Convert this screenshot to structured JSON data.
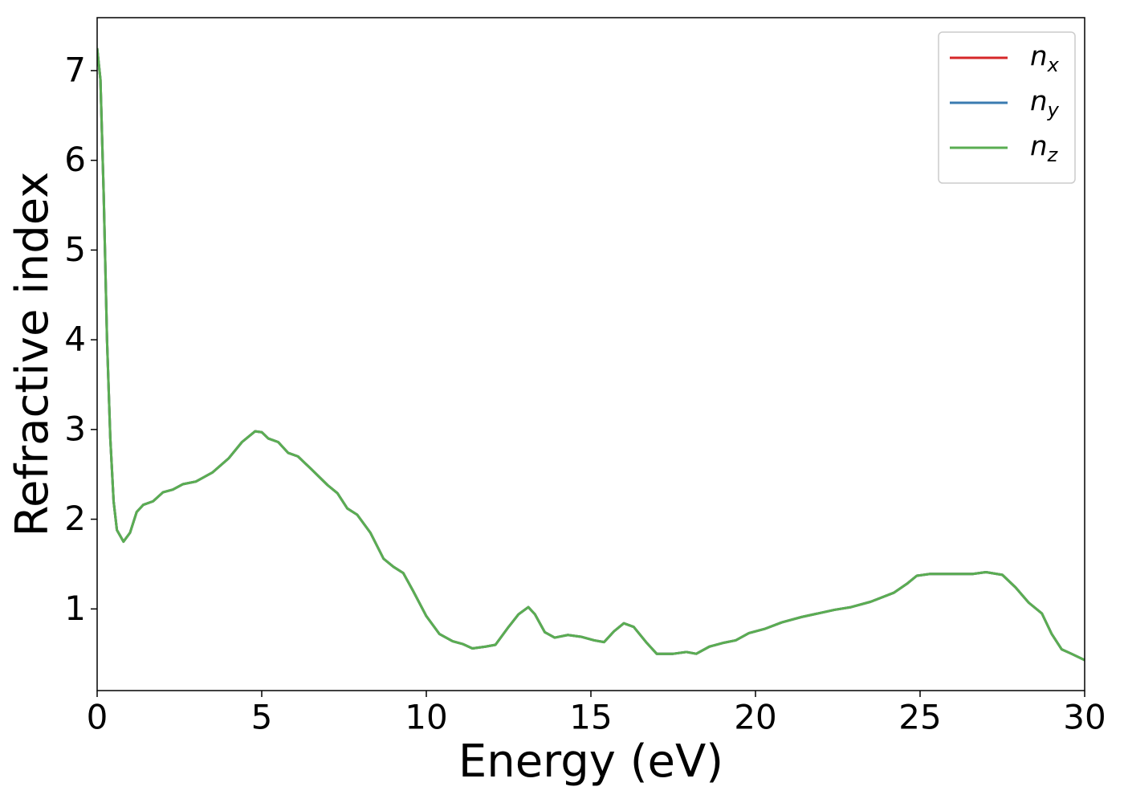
{
  "chart_data": {
    "type": "line",
    "xlabel": "Energy (eV)",
    "ylabel": "Refractive index",
    "x": [
      0,
      0.1,
      0.2,
      0.3,
      0.4,
      0.5,
      0.6,
      0.8,
      1.0,
      1.2,
      1.4,
      1.7,
      2.0,
      2.3,
      2.6,
      3.0,
      3.5,
      4.0,
      4.4,
      4.8,
      5.0,
      5.2,
      5.5,
      5.8,
      6.1,
      6.5,
      7.0,
      7.3,
      7.6,
      7.9,
      8.3,
      8.7,
      9.0,
      9.3,
      9.6,
      10.0,
      10.4,
      10.8,
      11.1,
      11.4,
      11.8,
      12.1,
      12.5,
      12.8,
      13.1,
      13.3,
      13.6,
      13.9,
      14.3,
      14.7,
      15.1,
      15.4,
      15.7,
      16.0,
      16.3,
      16.7,
      17.0,
      17.5,
      17.9,
      18.2,
      18.6,
      19.0,
      19.4,
      19.8,
      20.3,
      20.8,
      21.4,
      21.9,
      22.4,
      22.9,
      23.5,
      24.2,
      24.6,
      24.9,
      25.3,
      26.0,
      26.6,
      27.0,
      27.5,
      27.9,
      28.3,
      28.7,
      29.0,
      29.3,
      29.6,
      30.0
    ],
    "series": [
      {
        "name": "nx",
        "color": "#d62728",
        "values": [
          7.25,
          6.9,
          5.6,
          4.0,
          2.9,
          2.2,
          1.88,
          1.75,
          1.85,
          2.08,
          2.16,
          2.2,
          2.3,
          2.33,
          2.39,
          2.42,
          2.52,
          2.68,
          2.86,
          2.98,
          2.97,
          2.9,
          2.86,
          2.74,
          2.7,
          2.56,
          2.38,
          2.29,
          2.12,
          2.05,
          1.85,
          1.56,
          1.47,
          1.4,
          1.2,
          0.92,
          0.72,
          0.64,
          0.61,
          0.56,
          0.58,
          0.6,
          0.8,
          0.94,
          1.02,
          0.94,
          0.74,
          0.68,
          0.71,
          0.69,
          0.65,
          0.63,
          0.75,
          0.84,
          0.8,
          0.62,
          0.5,
          0.5,
          0.52,
          0.5,
          0.58,
          0.62,
          0.65,
          0.73,
          0.78,
          0.85,
          0.91,
          0.95,
          0.99,
          1.02,
          1.08,
          1.18,
          1.28,
          1.37,
          1.39,
          1.39,
          1.39,
          1.41,
          1.38,
          1.24,
          1.07,
          0.95,
          0.72,
          0.55,
          0.5,
          0.43
        ]
      },
      {
        "name": "ny",
        "color": "#3a7bb0",
        "values": [
          7.25,
          6.9,
          5.6,
          4.0,
          2.9,
          2.2,
          1.88,
          1.75,
          1.85,
          2.08,
          2.16,
          2.2,
          2.3,
          2.33,
          2.39,
          2.42,
          2.52,
          2.68,
          2.86,
          2.98,
          2.97,
          2.9,
          2.86,
          2.74,
          2.7,
          2.56,
          2.38,
          2.29,
          2.12,
          2.05,
          1.85,
          1.56,
          1.47,
          1.4,
          1.2,
          0.92,
          0.72,
          0.64,
          0.61,
          0.56,
          0.58,
          0.6,
          0.8,
          0.94,
          1.02,
          0.94,
          0.74,
          0.68,
          0.71,
          0.69,
          0.65,
          0.63,
          0.75,
          0.84,
          0.8,
          0.62,
          0.5,
          0.5,
          0.52,
          0.5,
          0.58,
          0.62,
          0.65,
          0.73,
          0.78,
          0.85,
          0.91,
          0.95,
          0.99,
          1.02,
          1.08,
          1.18,
          1.28,
          1.37,
          1.39,
          1.39,
          1.39,
          1.41,
          1.38,
          1.24,
          1.07,
          0.95,
          0.72,
          0.55,
          0.5,
          0.43
        ]
      },
      {
        "name": "nz",
        "color": "#5aad52",
        "values": [
          7.25,
          6.9,
          5.6,
          4.0,
          2.9,
          2.2,
          1.88,
          1.75,
          1.85,
          2.08,
          2.16,
          2.2,
          2.3,
          2.33,
          2.39,
          2.42,
          2.52,
          2.68,
          2.86,
          2.98,
          2.97,
          2.9,
          2.86,
          2.74,
          2.7,
          2.56,
          2.38,
          2.29,
          2.12,
          2.05,
          1.85,
          1.56,
          1.47,
          1.4,
          1.2,
          0.92,
          0.72,
          0.64,
          0.61,
          0.56,
          0.58,
          0.6,
          0.8,
          0.94,
          1.02,
          0.94,
          0.74,
          0.68,
          0.71,
          0.69,
          0.65,
          0.63,
          0.75,
          0.84,
          0.8,
          0.62,
          0.5,
          0.5,
          0.52,
          0.5,
          0.58,
          0.62,
          0.65,
          0.73,
          0.78,
          0.85,
          0.91,
          0.95,
          0.99,
          1.02,
          1.08,
          1.18,
          1.28,
          1.37,
          1.39,
          1.39,
          1.39,
          1.41,
          1.38,
          1.24,
          1.07,
          0.95,
          0.72,
          0.55,
          0.5,
          0.43
        ]
      }
    ],
    "xlim": [
      0,
      30
    ],
    "xticks": [
      0,
      5,
      10,
      15,
      20,
      25,
      30
    ],
    "ylim": [
      0.09,
      7.59
    ],
    "yticks": [
      1,
      2,
      3,
      4,
      5,
      6,
      7
    ],
    "grid": false,
    "legend": "upper right"
  }
}
